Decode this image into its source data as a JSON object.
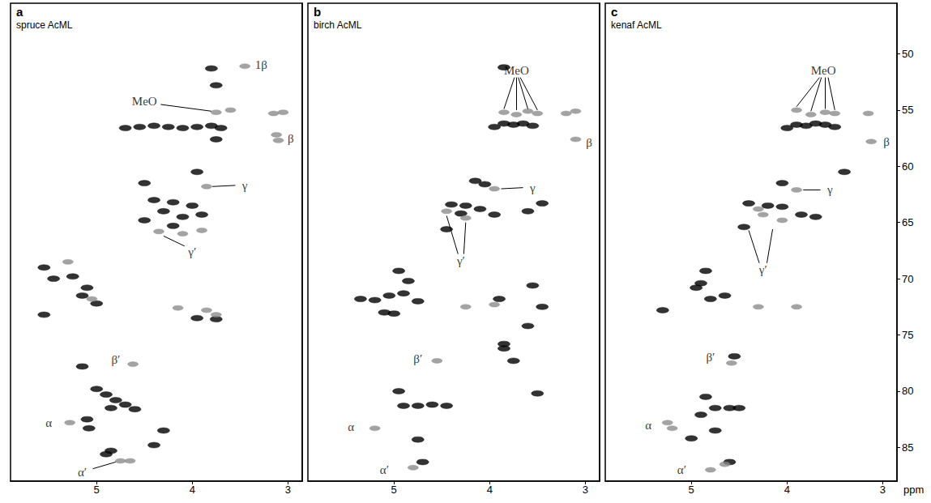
{
  "chart_data": [
    {
      "type": "scatter",
      "panel": "a",
      "title": "spruce AcML",
      "xlim": [
        5.9,
        2.85
      ],
      "xticks": [
        5,
        4,
        3
      ],
      "ylim": [
        88,
        45.5
      ],
      "tick_labels": "x",
      "series": [
        {
          "color": "#000000",
          "x": [
            3.8,
            3.75,
            4.7,
            4.55,
            4.4,
            4.25,
            4.1,
            3.95,
            3.8,
            3.7,
            3.75,
            3.95,
            4.5,
            4.4,
            4.2,
            4.0,
            4.3,
            4.1,
            3.9,
            4.5,
            4.2,
            5.55,
            5.45,
            5.25,
            5.1,
            5.15,
            5.0,
            5.55,
            3.95,
            3.75,
            5.15,
            5.0,
            4.9,
            4.8,
            4.7,
            4.6,
            4.85,
            4.3,
            5.1,
            5.08,
            4.85,
            4.9,
            4.4
          ],
          "y": [
            51.3,
            52.8,
            56.6,
            56.5,
            56.4,
            56.5,
            56.6,
            56.5,
            56.4,
            56.6,
            57.6,
            60.5,
            61.5,
            63.0,
            63.2,
            63.5,
            64.0,
            64.5,
            64.3,
            64.8,
            65.3,
            69.0,
            70.0,
            69.8,
            70.8,
            71.5,
            72.2,
            73.2,
            73.5,
            73.6,
            77.8,
            79.8,
            80.3,
            80.8,
            81.2,
            81.6,
            81.5,
            83.5,
            82.5,
            83.3,
            85.3,
            85.6,
            84.8
          ]
        },
        {
          "color": "#8c8c8c",
          "x": [
            3.45,
            3.75,
            3.6,
            3.15,
            3.05,
            3.12,
            3.1,
            3.85,
            4.35,
            4.1,
            3.9,
            5.3,
            5.05,
            4.15,
            3.85,
            3.75,
            4.62,
            5.28,
            4.75,
            4.65
          ],
          "y": [
            51.1,
            55.2,
            55.0,
            55.3,
            55.2,
            57.2,
            57.7,
            61.8,
            65.8,
            66.0,
            65.7,
            68.5,
            71.8,
            72.6,
            72.8,
            73.2,
            77.6,
            82.8,
            86.2,
            86.2
          ]
        }
      ],
      "annotations": [
        {
          "text": "1β",
          "x": 3.28,
          "y": 51.0,
          "leaders": []
        },
        {
          "text": "MeO",
          "x": 4.5,
          "y": 54.2,
          "leaders": [
            [
              [
                4.33,
                54.5
              ],
              [
                3.8,
                55.1
              ]
            ]
          ]
        },
        {
          "text": "β",
          "x": 2.97,
          "y": 57.5,
          "leaders": []
        },
        {
          "text": "γ",
          "x": 3.45,
          "y": 61.7,
          "leaders": [
            [
              [
                3.55,
                61.7
              ],
              [
                3.79,
                61.8
              ]
            ]
          ]
        },
        {
          "text": "γ′",
          "x": 4.0,
          "y": 67.6,
          "leaders": [
            [
              [
                4.08,
                67.1
              ],
              [
                4.3,
                66.2
              ]
            ]
          ]
        },
        {
          "text": "β′",
          "x": 4.8,
          "y": 77.2,
          "leaders": []
        },
        {
          "text": "α",
          "x": 5.5,
          "y": 82.8,
          "leaders": []
        },
        {
          "text": "α′",
          "x": 5.15,
          "y": 87.2,
          "leaders": [
            [
              [
                5.04,
                86.9
              ],
              [
                4.8,
                86.3
              ]
            ]
          ]
        }
      ]
    },
    {
      "type": "scatter",
      "panel": "b",
      "title": "birch AcML",
      "xlim": [
        5.9,
        2.85
      ],
      "xticks": [
        5,
        4,
        3
      ],
      "ylim": [
        88,
        45.5
      ],
      "tick_labels": "x",
      "series": [
        {
          "color": "#000000",
          "x": [
            3.85,
            3.85,
            3.75,
            3.65,
            3.55,
            3.95,
            4.15,
            4.05,
            3.6,
            3.45,
            4.4,
            4.25,
            4.1,
            4.3,
            3.95,
            4.45,
            5.35,
            5.2,
            5.05,
            4.9,
            4.75,
            4.85,
            4.95,
            5.1,
            5.0,
            3.9,
            3.55,
            3.45,
            3.6,
            3.85,
            3.85,
            3.75,
            3.5,
            4.95,
            4.9,
            4.75,
            4.6,
            4.45,
            4.75,
            4.7
          ],
          "y": [
            51.2,
            56.2,
            56.3,
            56.2,
            56.4,
            56.5,
            61.3,
            61.6,
            64.0,
            63.3,
            63.4,
            63.5,
            63.8,
            64.2,
            64.3,
            65.6,
            71.8,
            71.9,
            71.5,
            71.3,
            72.0,
            70.2,
            69.3,
            73.0,
            73.1,
            71.8,
            70.6,
            72.5,
            74.2,
            75.8,
            76.2,
            77.3,
            80.2,
            80.0,
            81.3,
            81.3,
            81.2,
            81.3,
            84.3,
            86.3
          ]
        },
        {
          "color": "#8c8c8c",
          "x": [
            3.85,
            3.72,
            3.6,
            3.5,
            3.2,
            3.1,
            3.1,
            3.95,
            4.45,
            4.25,
            4.25,
            3.95,
            4.55,
            5.2,
            4.8
          ],
          "y": [
            55.2,
            55.4,
            55.1,
            55.3,
            55.3,
            55.1,
            57.6,
            62.0,
            64.0,
            64.6,
            72.5,
            72.3,
            77.3,
            83.3,
            86.8
          ]
        }
      ],
      "annotations": [
        {
          "text": "MeO",
          "x": 3.72,
          "y": 51.5,
          "leaders": [
            [
              [
                3.74,
                52.1
              ],
              [
                3.85,
                54.9
              ]
            ],
            [
              [
                3.72,
                52.1
              ],
              [
                3.72,
                55.0
              ]
            ],
            [
              [
                3.7,
                52.1
              ],
              [
                3.6,
                54.9
              ]
            ],
            [
              [
                3.68,
                52.1
              ],
              [
                3.5,
                55.0
              ]
            ]
          ]
        },
        {
          "text": "β",
          "x": 2.96,
          "y": 57.9,
          "leaders": []
        },
        {
          "text": "γ",
          "x": 3.55,
          "y": 61.9,
          "leaders": [
            [
              [
                3.65,
                61.9
              ],
              [
                3.88,
                62.0
              ]
            ]
          ]
        },
        {
          "text": "γ′",
          "x": 4.3,
          "y": 68.4,
          "leaders": [
            [
              [
                4.33,
                67.8
              ],
              [
                4.45,
                64.4
              ]
            ],
            [
              [
                4.27,
                67.8
              ],
              [
                4.25,
                65.0
              ]
            ]
          ]
        },
        {
          "text": "β′",
          "x": 4.75,
          "y": 77.1,
          "leaders": []
        },
        {
          "text": "α",
          "x": 5.45,
          "y": 83.2,
          "leaders": []
        },
        {
          "text": "α′",
          "x": 5.1,
          "y": 87.0,
          "leaders": []
        }
      ]
    },
    {
      "type": "scatter",
      "panel": "c",
      "title": "kenaf AcML",
      "xlabel": "ppm",
      "xlim": [
        5.9,
        2.85
      ],
      "xticks": [
        5,
        4,
        3
      ],
      "ylim": [
        88,
        45.5
      ],
      "yticks": [
        50,
        55,
        60,
        65,
        70,
        75,
        80,
        85
      ],
      "series": [
        {
          "color": "#000000",
          "x": [
            3.9,
            3.8,
            3.7,
            3.6,
            3.5,
            4.0,
            3.4,
            4.05,
            4.4,
            4.2,
            4.05,
            3.85,
            3.7,
            4.45,
            4.85,
            4.9,
            4.95,
            4.65,
            5.3,
            4.8,
            4.55,
            4.85,
            4.75,
            4.6,
            4.5,
            4.9,
            5.0,
            4.75,
            4.6
          ],
          "y": [
            56.3,
            56.4,
            56.2,
            56.3,
            56.5,
            56.6,
            60.5,
            61.5,
            63.3,
            63.5,
            63.6,
            64.3,
            64.5,
            65.4,
            69.3,
            70.4,
            70.8,
            71.5,
            72.8,
            71.8,
            76.9,
            80.5,
            81.5,
            81.5,
            81.5,
            82.1,
            84.2,
            83.5,
            86.3
          ]
        },
        {
          "color": "#8c8c8c",
          "x": [
            3.9,
            3.75,
            3.6,
            3.5,
            3.15,
            3.12,
            3.9,
            4.3,
            4.25,
            4.05,
            4.3,
            3.9,
            4.58,
            5.25,
            5.2,
            4.8,
            4.65
          ],
          "y": [
            55.0,
            55.4,
            55.2,
            55.3,
            55.3,
            57.8,
            62.1,
            63.8,
            64.3,
            64.8,
            72.5,
            72.5,
            77.5,
            82.8,
            83.3,
            87.0,
            86.5
          ]
        }
      ],
      "annotations": [
        {
          "text": "MeO",
          "x": 3.62,
          "y": 51.5,
          "leaders": [
            [
              [
                3.66,
                52.1
              ],
              [
                3.9,
                54.7
              ]
            ],
            [
              [
                3.64,
                52.1
              ],
              [
                3.75,
                55.1
              ]
            ],
            [
              [
                3.6,
                52.1
              ],
              [
                3.6,
                54.9
              ]
            ],
            [
              [
                3.57,
                52.1
              ],
              [
                3.5,
                55.0
              ]
            ]
          ]
        },
        {
          "text": "β",
          "x": 2.96,
          "y": 57.8,
          "leaders": []
        },
        {
          "text": "γ",
          "x": 3.55,
          "y": 62.1,
          "leaders": [
            [
              [
                3.65,
                62.1
              ],
              [
                3.83,
                62.1
              ]
            ]
          ]
        },
        {
          "text": "γ′",
          "x": 4.25,
          "y": 69.2,
          "leaders": [
            [
              [
                4.29,
                68.6
              ],
              [
                4.4,
                65.7
              ]
            ],
            [
              [
                4.21,
                68.6
              ],
              [
                4.15,
                65.6
              ]
            ]
          ]
        },
        {
          "text": "β′",
          "x": 4.8,
          "y": 77.0,
          "leaders": []
        },
        {
          "text": "α",
          "x": 5.45,
          "y": 83.0,
          "leaders": []
        },
        {
          "text": "α′",
          "x": 5.1,
          "y": 87.0,
          "leaders": []
        }
      ]
    }
  ]
}
